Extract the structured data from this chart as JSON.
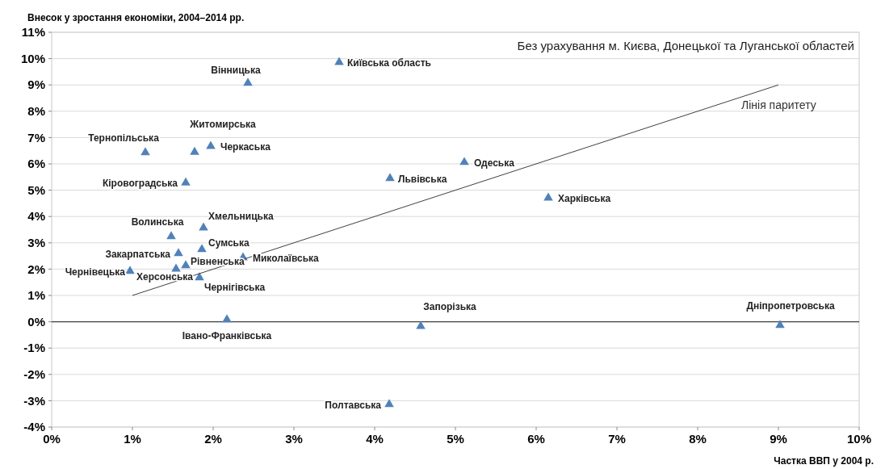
{
  "chart_data": {
    "type": "scatter",
    "ylabel": "Внесок у зростання економіки, 2004–2014 рр.",
    "xlabel": "Частка ВВП у 2004 р.",
    "xlim": [
      0,
      10
    ],
    "ylim": [
      -4,
      11
    ],
    "xticks": [
      {
        "value": 0,
        "label": "0%"
      },
      {
        "value": 1,
        "label": "1%"
      },
      {
        "value": 2,
        "label": "2%"
      },
      {
        "value": 3,
        "label": "3%"
      },
      {
        "value": 4,
        "label": "4%"
      },
      {
        "value": 5,
        "label": "5%"
      },
      {
        "value": 6,
        "label": "6%"
      },
      {
        "value": 7,
        "label": "7%"
      },
      {
        "value": 8,
        "label": "8%"
      },
      {
        "value": 9,
        "label": "9%"
      },
      {
        "value": 10,
        "label": "10%"
      }
    ],
    "yticks": [
      {
        "value": -4,
        "label": "-4%"
      },
      {
        "value": -3,
        "label": "-3%"
      },
      {
        "value": -2,
        "label": "-2%"
      },
      {
        "value": -1,
        "label": "-1%"
      },
      {
        "value": 0,
        "label": "0%"
      },
      {
        "value": 1,
        "label": "1%"
      },
      {
        "value": 2,
        "label": "2%"
      },
      {
        "value": 3,
        "label": "3%"
      },
      {
        "value": 4,
        "label": "4%"
      },
      {
        "value": 5,
        "label": "5%"
      },
      {
        "value": 6,
        "label": "6%"
      },
      {
        "value": 7,
        "label": "7%"
      },
      {
        "value": 8,
        "label": "8%"
      },
      {
        "value": 9,
        "label": "9%"
      },
      {
        "value": 10,
        "label": "10%"
      },
      {
        "value": 11,
        "label": "11%"
      }
    ],
    "grid": "y",
    "legend": false,
    "ref_lines": [
      {
        "axis": "y",
        "value": 0,
        "color": "#404040"
      }
    ],
    "series": [
      {
        "marker": "triangle",
        "color": "#4f81bd",
        "x": [
          3.56,
          2.43,
          1.16,
          1.77,
          1.97,
          1.66,
          5.11,
          4.19,
          6.15,
          1.88,
          1.48,
          1.86,
          1.57,
          2.37,
          1.66,
          1.54,
          0.97,
          1.83,
          2.17,
          4.57,
          9.02,
          4.18
        ],
        "values": [
          9.86,
          9.07,
          6.43,
          6.45,
          6.67,
          5.28,
          6.06,
          5.45,
          4.71,
          3.57,
          3.24,
          2.75,
          2.6,
          2.44,
          2.14,
          2.01,
          1.92,
          1.68,
          0.08,
          -0.17,
          -0.13,
          -3.14
        ]
      },
      {
        "type": "line",
        "marker": "none",
        "name": "Лінія паритету",
        "color": "#404040",
        "x": [
          1,
          9
        ],
        "values": [
          1,
          9
        ]
      }
    ],
    "annotations": [
      "Без урахування м. Києва, Донецької та Луганської областей",
      {
        "text": "Київська область",
        "x": 3.56,
        "y": 9.86
      },
      {
        "text": "Вінницька",
        "x": 2.43,
        "y": 9.07
      },
      {
        "text": "Тернопільська",
        "x": 1.16,
        "y": 6.43
      },
      {
        "text": "Житомирська",
        "x": 1.77,
        "y": 6.45
      },
      {
        "text": "Черкаська",
        "x": 1.97,
        "y": 6.67
      },
      {
        "text": "Кіровоградська",
        "x": 1.66,
        "y": 5.28
      },
      {
        "text": "Одеська",
        "x": 5.11,
        "y": 6.06
      },
      {
        "text": "Львівська",
        "x": 4.19,
        "y": 5.45
      },
      {
        "text": "Харківська",
        "x": 6.15,
        "y": 4.71
      },
      {
        "text": "Хмельницька",
        "x": 1.88,
        "y": 3.57
      },
      {
        "text": "Волинська",
        "x": 1.48,
        "y": 3.24
      },
      {
        "text": "Сумська",
        "x": 1.86,
        "y": 2.75
      },
      {
        "text": "Закарпатська",
        "x": 1.57,
        "y": 2.6
      },
      {
        "text": "Миколаївська",
        "x": 2.37,
        "y": 2.44
      },
      {
        "text": "Рівненська",
        "x": 1.66,
        "y": 2.14
      },
      {
        "text": "Херсонська",
        "x": 1.54,
        "y": 2.01
      },
      {
        "text": "Чернівецька",
        "x": 0.97,
        "y": 1.92
      },
      {
        "text": "Чернігівська",
        "x": 1.83,
        "y": 1.68
      },
      {
        "text": "Івано-Франківська",
        "x": 2.17,
        "y": 0.08
      },
      {
        "text": "Запорізька",
        "x": 4.57,
        "y": -0.17
      },
      {
        "text": "Дніпропетровська",
        "x": 9.02,
        "y": -0.13
      },
      {
        "text": "Полтавська",
        "x": 4.18,
        "y": -3.14
      }
    ]
  }
}
